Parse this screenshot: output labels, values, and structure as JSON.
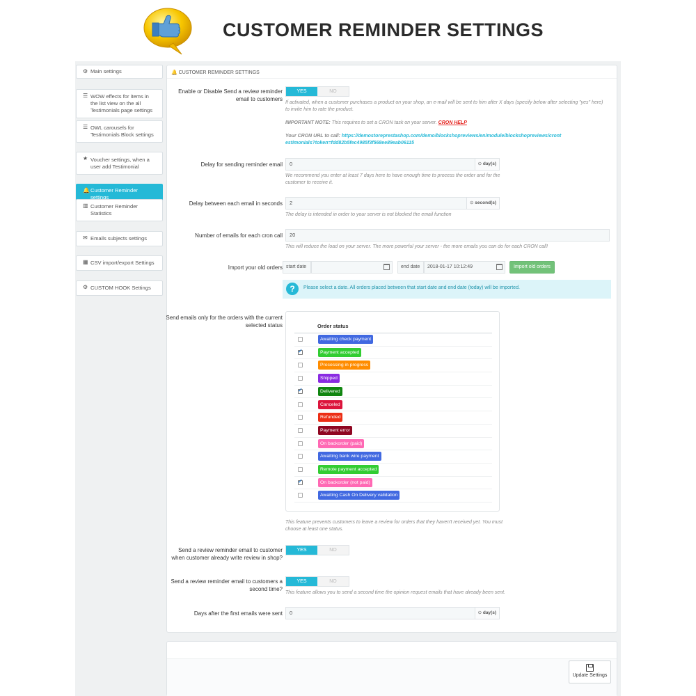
{
  "banner": {
    "title": "CUSTOMER REMINDER SETTINGS",
    "logo_icon": "thumbs-up-speech-bubble-icon"
  },
  "sidebar": {
    "items": [
      {
        "icon": "gears-icon",
        "glyph": "⚙",
        "label": "Main settings"
      },
      {
        "icon": "sliders-icon",
        "glyph": "☰",
        "label": "WOW effects for items in the list view on the all Testimonials page settings"
      },
      {
        "icon": "sliders-icon",
        "glyph": "☰",
        "label": "OWL carousels for Testimonials Block settings"
      },
      {
        "icon": "star-icon",
        "glyph": "★",
        "label": "Voucher settings, when a user add Testimonial"
      },
      {
        "icon": "bell-icon",
        "glyph": "🔔",
        "label": "Customer Reminder settings"
      },
      {
        "icon": "bar-chart-icon",
        "glyph": "▥",
        "label": "Customer Reminder Statistics"
      },
      {
        "icon": "envelope-icon",
        "glyph": "✉",
        "label": "Emails subjects settings"
      },
      {
        "icon": "table-icon",
        "glyph": "▦",
        "label": "CSV import/export Settings"
      },
      {
        "icon": "gears-icon",
        "glyph": "⚙",
        "label": "CUSTOM HOOK Settings"
      }
    ],
    "active_index": 4
  },
  "panel": {
    "heading": "CUSTOMER REMINDER SETTINGS",
    "enable": {
      "label": "Enable or Disable Send a review reminder email to customers",
      "yes": "YES",
      "no": "NO",
      "help1": "If activated, when a customer purchases a product on your shop, an e-mail will be sent to him after X days (specify below after selecting \"yes\" here) to invite him to rate the product.",
      "note_label": "IMPORTANT NOTE:",
      "note_text": " This requires to set a CRON task on your server. ",
      "cron_help": "CRON HELP",
      "cron_url_label": "Your CRON URL to call: ",
      "cron_url": "https://demostoreprestashop.com/demo/blockshopreviews/en/module/blockshopreviews/crontestimonials?token=fdd82b5fec4985f3f568ee89eab06115"
    },
    "delay": {
      "label": "Delay for sending reminder email",
      "value": "0",
      "unit": "day(s)",
      "help": "We recommend you enter at least 7 days here to have enough time to process the order and for the customer to receive it."
    },
    "delay_between": {
      "label": "Delay between each email in seconds",
      "value": "2",
      "unit": "second(s)",
      "help": "The delay is intended in order to your server is not blocked the email function"
    },
    "emails_count": {
      "label": "Number of emails for each cron call",
      "value": "20",
      "help": "This will reduce the load on your server. The more powerful your server - the more emails you can do for each CRON call!"
    },
    "import": {
      "label": "Import your old orders",
      "start_label": "start date",
      "start_value": "",
      "end_label": "end date",
      "end_value": "2018-01-17 10:12:49",
      "button": "Import old orders",
      "alert": "Please select a date. All orders placed between that start date and end date (today) will be imported."
    },
    "statuses": {
      "label": "Send emails only for the orders with the current selected status",
      "header": "Order status",
      "items": [
        {
          "name": "Awaiting check payment",
          "color": "#4169e1",
          "checked": false
        },
        {
          "name": "Payment accepted",
          "color": "#32cd32",
          "checked": true
        },
        {
          "name": "Processing in progress",
          "color": "#ff8c00",
          "checked": false
        },
        {
          "name": "Shipped",
          "color": "#8a2be2",
          "checked": false
        },
        {
          "name": "Delivered",
          "color": "#108510",
          "checked": true
        },
        {
          "name": "Canceled",
          "color": "#dc143c",
          "checked": false
        },
        {
          "name": "Refunded",
          "color": "#ec2e15",
          "checked": false
        },
        {
          "name": "Payment error",
          "color": "#8f0621",
          "checked": false
        },
        {
          "name": "On backorder (paid)",
          "color": "#ff69b4",
          "checked": false
        },
        {
          "name": "Awaiting bank wire payment",
          "color": "#4169e1",
          "checked": false
        },
        {
          "name": "Remote payment accepted",
          "color": "#32cd32",
          "checked": false
        },
        {
          "name": "On backorder (not paid)",
          "color": "#ff69b4",
          "checked": true
        },
        {
          "name": "Awaiting Cash On Delivery validation",
          "color": "#4169e1",
          "checked": false
        }
      ],
      "help": "This feature prevents customers to leave a review for orders that they haven't received yet. You must choose at least one status."
    },
    "already_reviewed": {
      "label": "Send a review reminder email to customer when customer already write review in shop?",
      "yes": "YES",
      "no": "NO"
    },
    "second_time": {
      "label": "Send a review reminder email to customers a second time?",
      "yes": "YES",
      "no": "NO",
      "help": "This feature allows you to send a second time the opinion request emails that have already been sent."
    },
    "days_after": {
      "label": "Days after the first emails were sent",
      "value": "0",
      "unit": "day(s)"
    }
  },
  "footer": {
    "update_label": "Update Settings"
  },
  "colors": {
    "accent": "#25b9d7",
    "success": "#72c279",
    "background": "#eff1f2"
  }
}
